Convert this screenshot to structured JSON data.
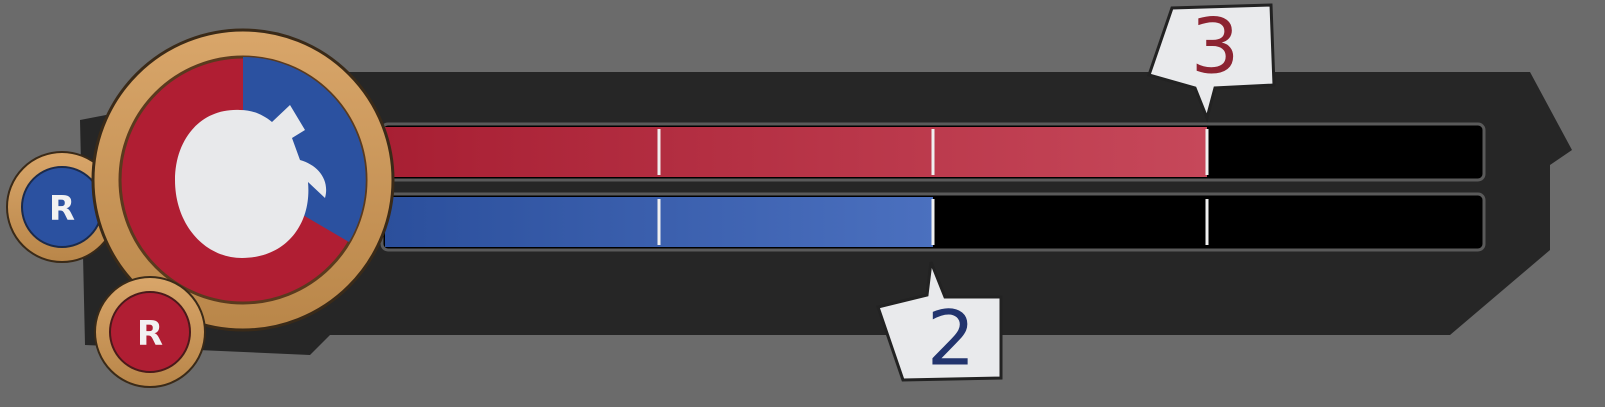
{
  "red_team": {
    "badge": "R",
    "score": 3
  },
  "blue_team": {
    "badge": "R",
    "score": 2
  }
}
